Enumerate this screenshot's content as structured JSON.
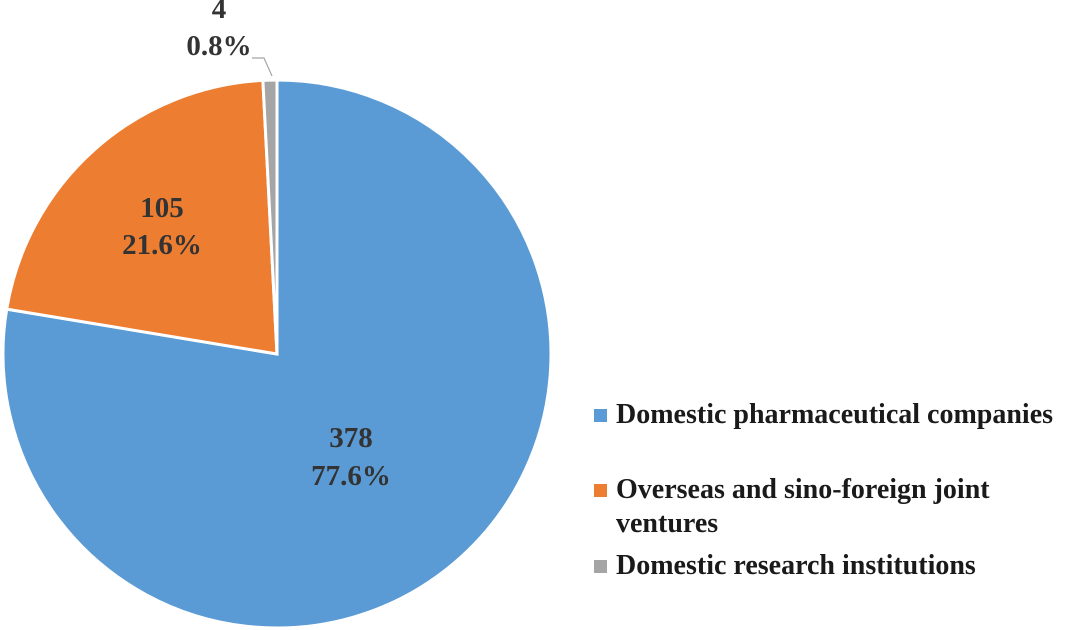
{
  "chart_data": {
    "type": "pie",
    "start_angle_deg": 0,
    "direction": "clockwise",
    "slices": [
      {
        "name": "Domestic pharmaceutical companies",
        "value": 378,
        "percent": "77.6%",
        "color": "#5b9bd5"
      },
      {
        "name": "Overseas and sino-foreign joint ventures",
        "value": 105,
        "percent": "21.6%",
        "color": "#ed7d31"
      },
      {
        "name": "Domestic research institutions",
        "value": 4,
        "percent": "0.8%",
        "color": "#a5a5a5"
      }
    ],
    "legend_position": "bottom-right"
  },
  "legend": {
    "items": [
      {
        "label": "Domestic pharmaceutical companies",
        "color": "#5b9bd5"
      },
      {
        "label": "Overseas and sino-foreign joint ventures",
        "color": "#ed7d31"
      },
      {
        "label": "Domestic research institutions",
        "color": "#a5a5a5"
      }
    ]
  }
}
